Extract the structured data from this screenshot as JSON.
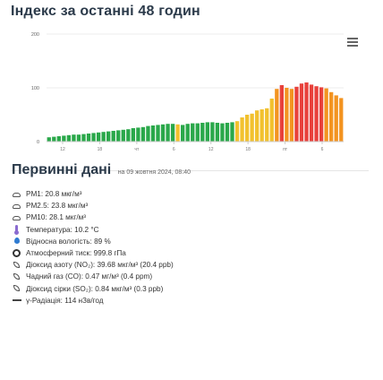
{
  "title": "Індекс за останні 48 годин",
  "chart_data": {
    "type": "bar",
    "y_ticks": [
      "200",
      "100",
      "0"
    ],
    "ylim": [
      0,
      200
    ],
    "x_tick_labels": [
      "12",
      "18",
      "чт",
      "6",
      "12",
      "18",
      "пт",
      "6"
    ],
    "colors": {
      "green": "#2aa84a",
      "yellow": "#f2c12e",
      "orange": "#f39421",
      "red": "#e8413b",
      "grid": "#eeeeee"
    },
    "values": [
      8,
      9,
      10,
      11,
      12,
      13,
      13,
      14,
      15,
      16,
      17,
      18,
      19,
      20,
      21,
      22,
      23,
      25,
      26,
      27,
      29,
      30,
      31,
      32,
      33,
      33,
      32,
      31,
      33,
      34,
      34,
      35,
      36,
      36,
      35,
      34,
      35,
      36,
      38,
      45,
      50,
      52,
      58,
      60,
      62,
      80,
      98,
      105,
      100,
      98,
      102,
      108,
      110,
      106,
      103,
      101,
      99,
      92,
      86,
      81
    ],
    "color_index": [
      "g",
      "g",
      "g",
      "g",
      "g",
      "g",
      "g",
      "g",
      "g",
      "g",
      "g",
      "g",
      "g",
      "g",
      "g",
      "g",
      "g",
      "g",
      "g",
      "g",
      "g",
      "g",
      "g",
      "g",
      "g",
      "g",
      "y",
      "g",
      "g",
      "g",
      "g",
      "g",
      "g",
      "g",
      "g",
      "g",
      "g",
      "g",
      "y",
      "y",
      "y",
      "y",
      "y",
      "y",
      "y",
      "y",
      "o",
      "r",
      "o",
      "o",
      "r",
      "r",
      "r",
      "r",
      "r",
      "r",
      "o",
      "o",
      "o",
      "o"
    ]
  },
  "primary": {
    "heading": "Первинні дані",
    "date": "на 09 жовтня 2024, 08:40",
    "items": [
      {
        "icon": "cloud",
        "text": "PM1: 20.8 мкг/м³"
      },
      {
        "icon": "cloud",
        "text": "PM2.5: 23.8 мкг/м³"
      },
      {
        "icon": "cloud",
        "text": "PM10: 28.1 мкг/м³"
      },
      {
        "icon": "thermometer",
        "text": "Температура: 10.2 °C"
      },
      {
        "icon": "drop",
        "text": "Відносна вологість: 89 %"
      },
      {
        "icon": "gauge",
        "text": "Атмосферний тиск: 999.8 гПа"
      },
      {
        "icon": "leaf",
        "text": "Діоксид азоту (NO₂): 39.68 мкг/м³ (20.4 ppb)"
      },
      {
        "icon": "leaf",
        "text": "Чадний газ (CO): 0.47 мг/м³ (0.4 ppm)"
      },
      {
        "icon": "leaf",
        "text": "Діоксид сірки (SO₂): 0.84 мкг/м³ (0.3 ppb)"
      },
      {
        "icon": "wave",
        "text": "γ-Радіація: 114 нЗв/год"
      }
    ]
  }
}
